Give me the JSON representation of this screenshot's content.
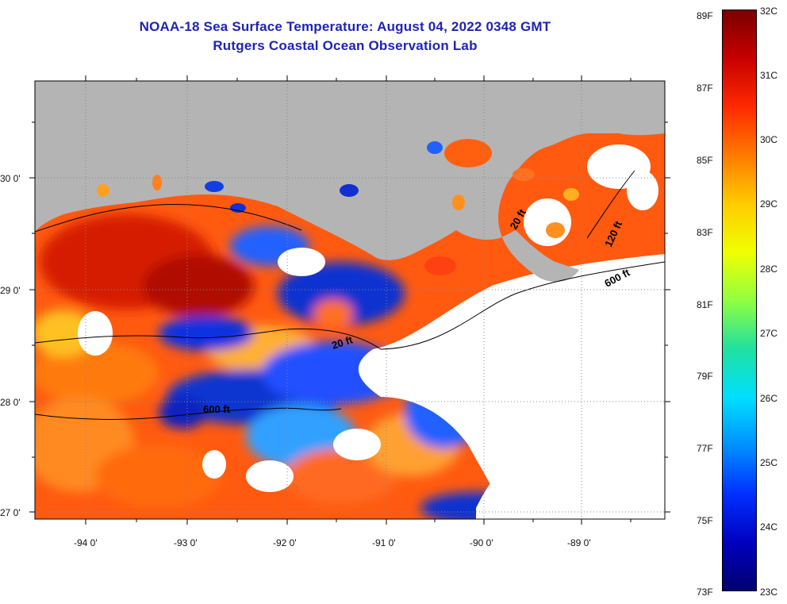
{
  "header": {
    "title_line1": "NOAA-18 Sea Surface Temperature:  August 04, 2022 0348 GMT",
    "title_line2": "Rutgers Coastal Ocean Observation Lab"
  },
  "map": {
    "lon_labels": [
      "-94 0'",
      "-93 0'",
      "-92 0'",
      "-91 0'",
      "-90 0'",
      "-89 0'"
    ],
    "lat_labels": [
      "30 0'",
      "29 0'",
      "28 0'",
      "27 0'"
    ],
    "depth_contours": [
      "20 ft",
      "120 ft",
      "600 ft",
      "20 ft",
      "600 ft"
    ],
    "colors": {
      "land": "#b4b4b4",
      "cloud": "#ffffff",
      "grid": "#888888"
    }
  },
  "colorbar": {
    "fahrenheit": [
      "89F",
      "87F",
      "85F",
      "83F",
      "81F",
      "79F",
      "77F",
      "75F",
      "73F"
    ],
    "celsius": [
      "32C",
      "31C",
      "30C",
      "29C",
      "28C",
      "27C",
      "26C",
      "25C",
      "24C",
      "23C"
    ],
    "stops": [
      "#7a0000",
      "#c80000",
      "#ff2a00",
      "#ff7a00",
      "#ffcc00",
      "#f0ff00",
      "#90ff40",
      "#20e0a0",
      "#00e0ff",
      "#0090ff",
      "#0030ff",
      "#0000c0",
      "#000070"
    ]
  }
}
